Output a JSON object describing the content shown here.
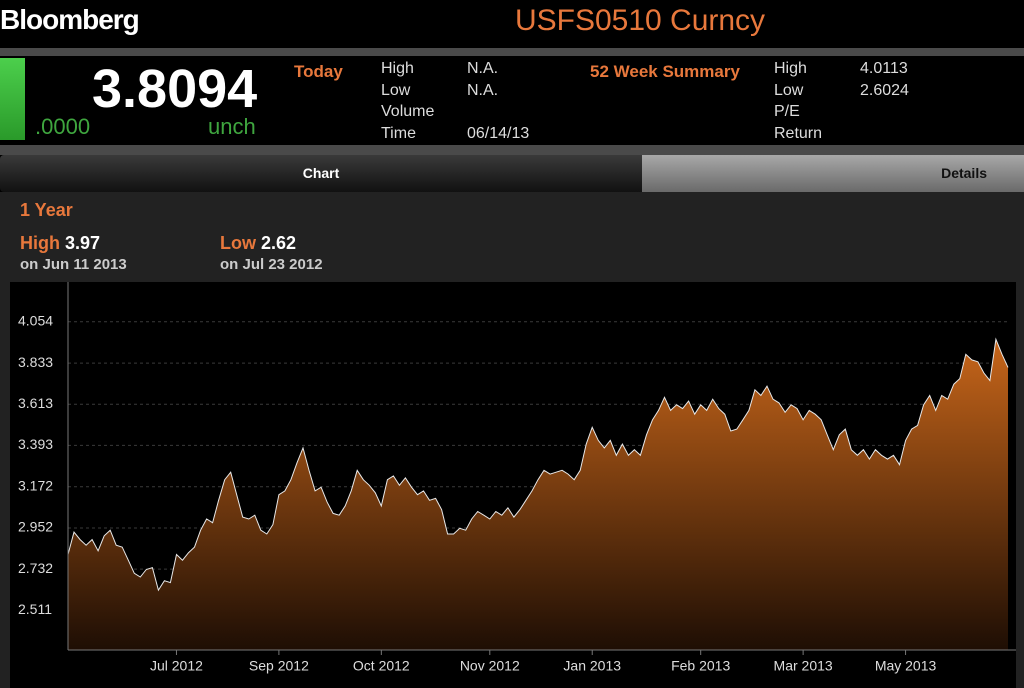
{
  "header": {
    "brand": "Bloomberg",
    "ticker": "USFS0510 Curncy"
  },
  "quote": {
    "price": 3.8094,
    "change": ".0000",
    "change_label": "unch"
  },
  "today": {
    "title": "Today",
    "rows": [
      {
        "label": "High",
        "value": "N.A."
      },
      {
        "label": "Low",
        "value": "N.A."
      },
      {
        "label": "Volume"
      },
      {
        "label": "Time",
        "value": "06/14/13"
      }
    ]
  },
  "summary": {
    "title": "52 Week Summary",
    "rows": [
      {
        "label": "High",
        "value": 4.0113
      },
      {
        "label": "Low",
        "value": 2.6024
      },
      {
        "label": "P/E"
      },
      {
        "label": "Return"
      }
    ]
  },
  "tabs": [
    "Chart",
    "Details"
  ],
  "range": {
    "title": "1 Year",
    "high": {
      "label": "High",
      "value": 3.97,
      "date": "on Jun 11 2013"
    },
    "low": {
      "label": "Low",
      "value": 2.62,
      "date": "on Jul 23 2012"
    }
  },
  "chart_data": {
    "type": "area",
    "series": [
      {
        "color": "#c8661a",
        "values": [
          2.81,
          2.93,
          2.89,
          2.86,
          2.89,
          2.83,
          2.91,
          2.94,
          2.86,
          2.85,
          2.78,
          2.71,
          2.69,
          2.73,
          2.74,
          2.62,
          2.67,
          2.66,
          2.81,
          2.78,
          2.82,
          2.85,
          2.94,
          3.0,
          2.98,
          3.1,
          3.21,
          3.25,
          3.13,
          3.01,
          3.0,
          3.02,
          2.94,
          2.92,
          2.97,
          3.13,
          3.15,
          3.21,
          3.3,
          3.38,
          3.26,
          3.15,
          3.17,
          3.09,
          3.03,
          3.02,
          3.07,
          3.15,
          3.26,
          3.21,
          3.18,
          3.14,
          3.07,
          3.21,
          3.23,
          3.18,
          3.22,
          3.17,
          3.13,
          3.15,
          3.1,
          3.11,
          3.05,
          2.92,
          2.92,
          2.95,
          2.94,
          3.0,
          3.04,
          3.02,
          3.0,
          3.04,
          3.02,
          3.06,
          3.01,
          3.05,
          3.1,
          3.15,
          3.21,
          3.26,
          3.24,
          3.25,
          3.26,
          3.24,
          3.21,
          3.26,
          3.4,
          3.49,
          3.42,
          3.38,
          3.42,
          3.34,
          3.4,
          3.34,
          3.37,
          3.34,
          3.45,
          3.53,
          3.58,
          3.65,
          3.58,
          3.61,
          3.59,
          3.63,
          3.56,
          3.61,
          3.58,
          3.64,
          3.59,
          3.56,
          3.47,
          3.48,
          3.53,
          3.58,
          3.69,
          3.66,
          3.71,
          3.64,
          3.62,
          3.57,
          3.61,
          3.59,
          3.53,
          3.58,
          3.56,
          3.53,
          3.45,
          3.37,
          3.45,
          3.48,
          3.37,
          3.34,
          3.37,
          3.32,
          3.37,
          3.34,
          3.32,
          3.34,
          3.29,
          3.42,
          3.48,
          3.5,
          3.61,
          3.66,
          3.58,
          3.66,
          3.64,
          3.72,
          3.75,
          3.88,
          3.85,
          3.84,
          3.78,
          3.74,
          3.96,
          3.88,
          3.81
        ]
      }
    ],
    "xlim": [
      0,
      156
    ],
    "xticks": [
      {
        "value": 18,
        "label": "Jul 2012"
      },
      {
        "value": 35,
        "label": "Sep 2012"
      },
      {
        "value": 52,
        "label": "Oct 2012"
      },
      {
        "value": 70,
        "label": "Nov 2012"
      },
      {
        "value": 87,
        "label": "Jan 2013"
      },
      {
        "value": 105,
        "label": "Feb 2013"
      },
      {
        "value": 122,
        "label": "Mar 2013"
      },
      {
        "value": 139,
        "label": "May 2013"
      }
    ],
    "ylim": [
      2.3,
      4.17
    ],
    "yticks": [
      4.054,
      3.833,
      3.613,
      3.393,
      3.172,
      2.952,
      2.732,
      2.511
    ],
    "grid": true
  }
}
